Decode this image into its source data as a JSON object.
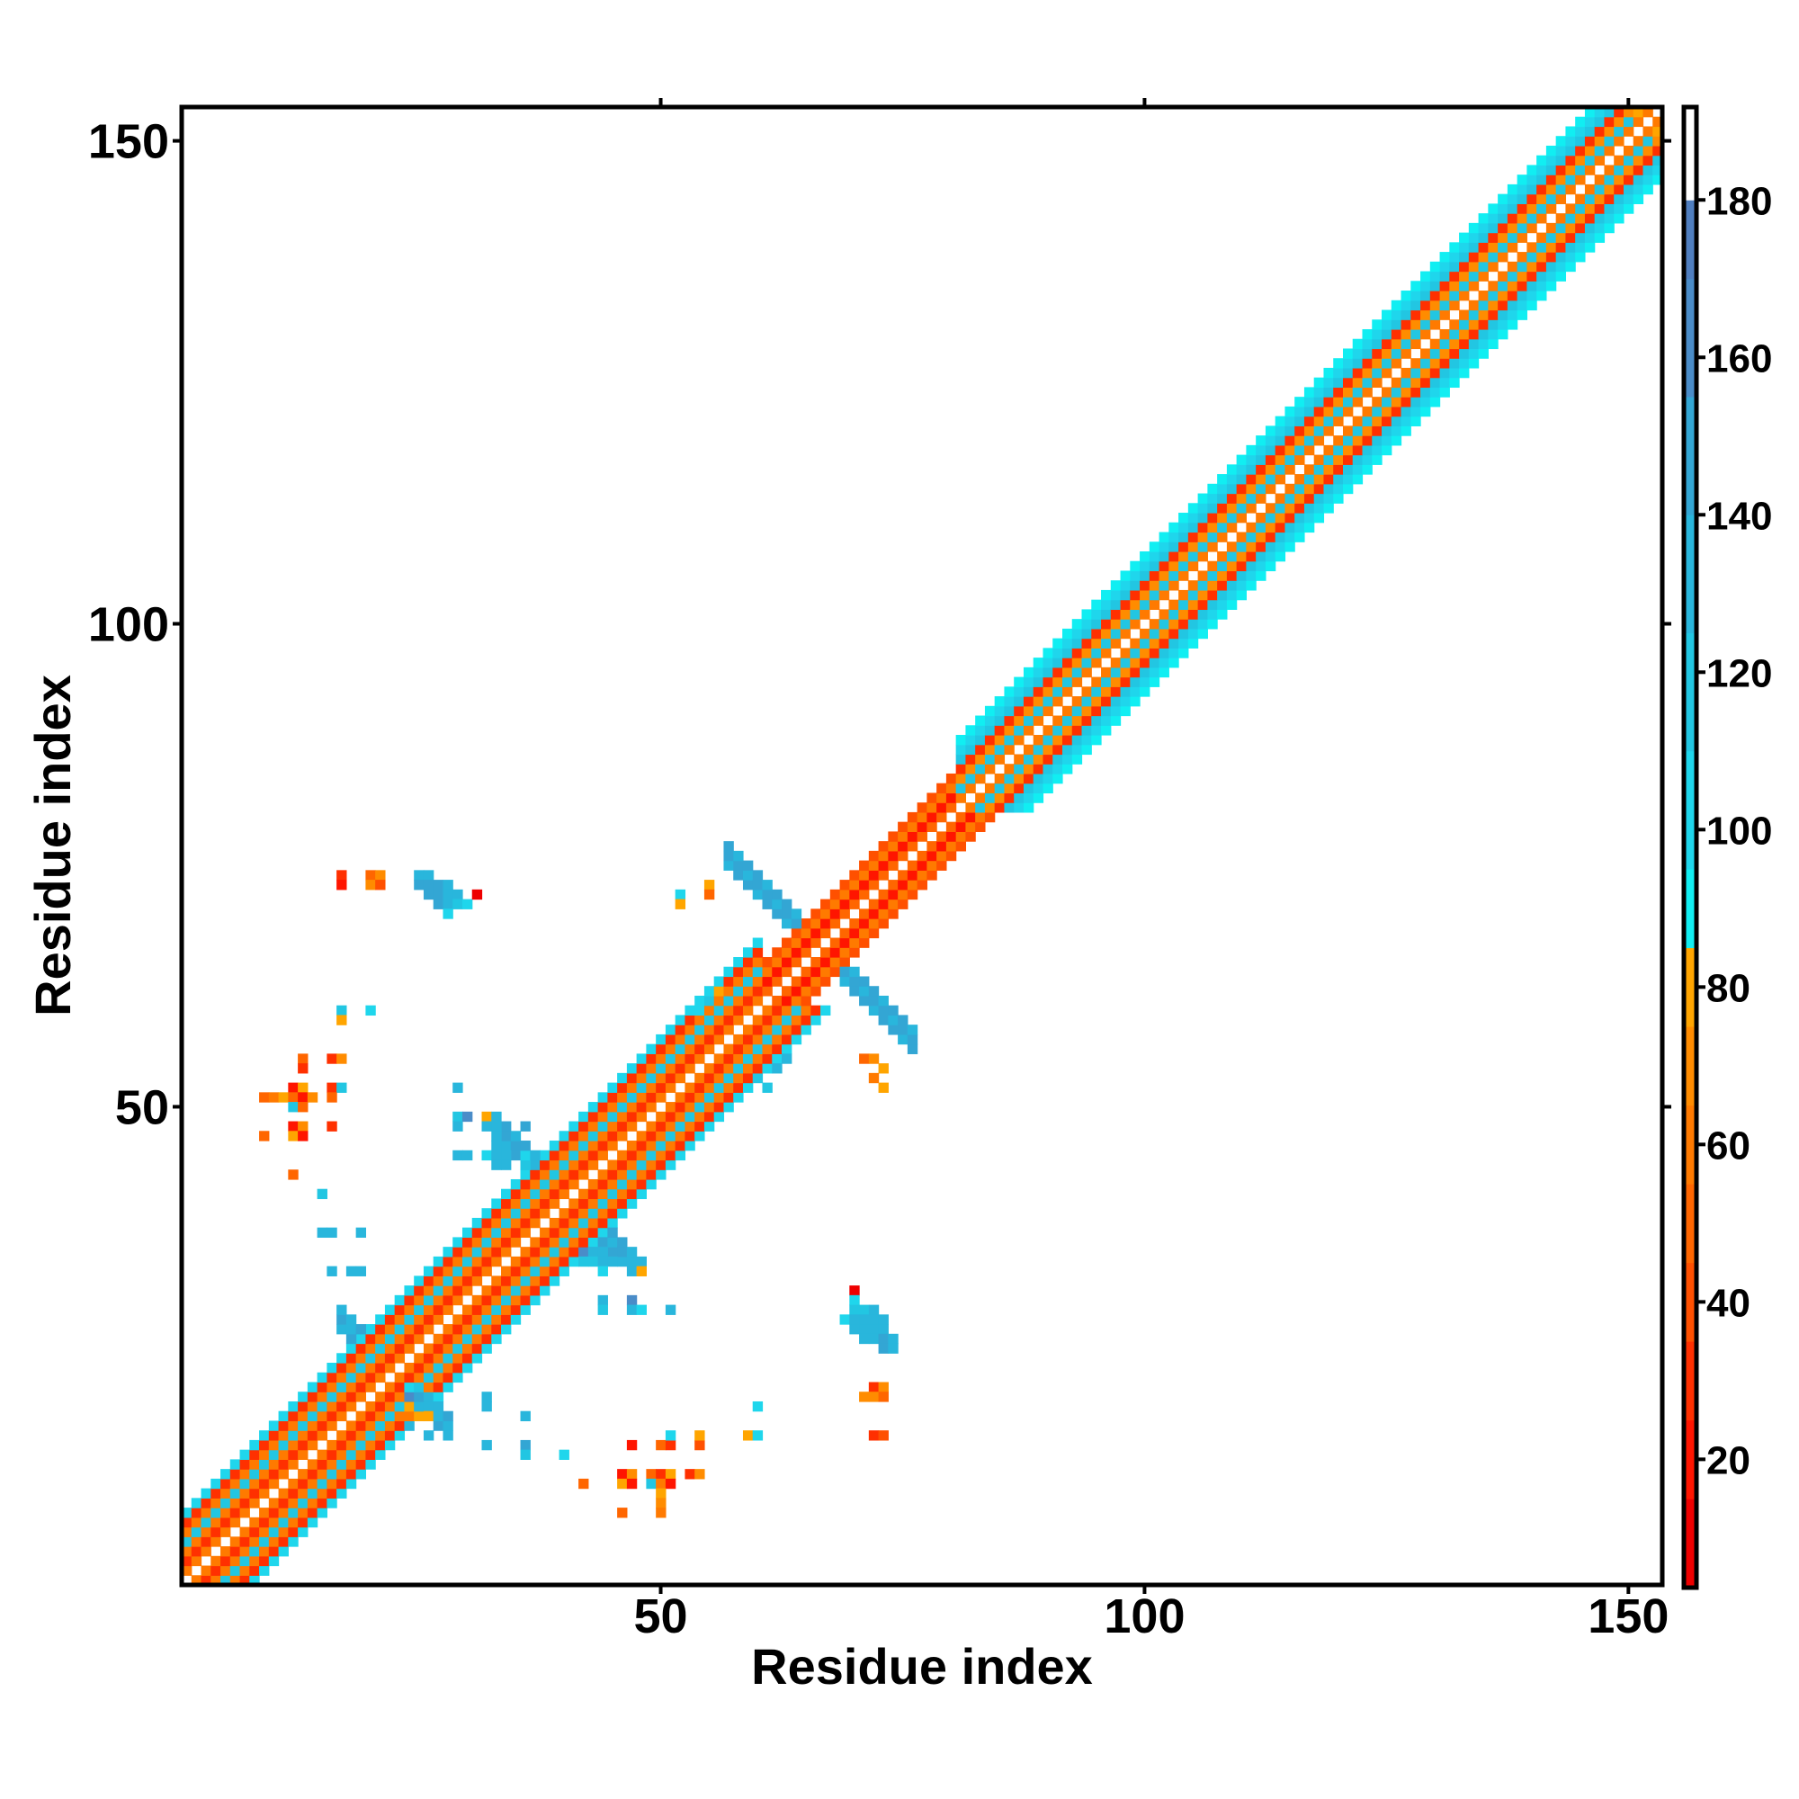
{
  "chart_data": {
    "type": "heatmap",
    "title": "",
    "xlabel": "Residue index",
    "ylabel": "Residue index",
    "xlim": [
      0.5,
      153.5
    ],
    "ylim": [
      0.5,
      153.5
    ],
    "xticks": [
      50,
      100,
      150
    ],
    "yticks": [
      50,
      100,
      150
    ],
    "xtick_labels": [
      "50",
      "100",
      "150"
    ],
    "ytick_labels": [
      "50",
      "100",
      "150"
    ],
    "n_residues": 153,
    "colorbar": {
      "range": [
        3.7,
        191.8
      ],
      "ticks": [
        20,
        40,
        60,
        80,
        100,
        120,
        140,
        160,
        180
      ],
      "tick_labels": [
        "20",
        "40",
        "60",
        "80",
        "100",
        "120",
        "140",
        "160",
        "180"
      ],
      "placement": "right"
    },
    "colormap": [
      [
        15,
        "#ee0000"
      ],
      [
        25,
        "#ff1500"
      ],
      [
        35,
        "#ff3000"
      ],
      [
        45,
        "#ff5000"
      ],
      [
        55,
        "#ff6600"
      ],
      [
        65,
        "#ff7a00"
      ],
      [
        75,
        "#ff8c00"
      ],
      [
        85,
        "#ffa500"
      ],
      [
        95,
        "#11eef2"
      ],
      [
        110,
        "#1fd6ec"
      ],
      [
        125,
        "#22c6e2"
      ],
      [
        140,
        "#29b6dc"
      ],
      [
        155,
        "#33a6d4"
      ],
      [
        170,
        "#4a8cc8"
      ],
      [
        180,
        "#4f7ebf"
      ],
      [
        999,
        "#ffffff"
      ]
    ],
    "diagonal_bands": [
      {
        "from": 1,
        "to": 36,
        "offset_values": [
          55,
          25,
          55,
          115,
          55,
          25,
          100
        ]
      },
      {
        "from": 37,
        "to": 60,
        "offset_values": [
          55,
          25,
          60,
          110,
          55,
          30,
          95
        ]
      },
      {
        "from": 61,
        "to": 80,
        "offset_values": [
          45,
          20,
          60,
          35
        ]
      },
      {
        "from": 81,
        "to": 150,
        "offset_values": [
          60,
          120,
          65,
          25,
          115,
          95,
          90
        ]
      },
      {
        "from": 151,
        "to": 153,
        "offset_values": [
          60,
          80
        ]
      }
    ],
    "antiparallel_contacts": [
      {
        "x_range": [
          17,
          28
        ],
        "sum_range": [
          44,
          46
        ],
        "value": 130
      },
      {
        "x_range": [
          34,
          47
        ],
        "sum_range": [
          80,
          82
        ],
        "value": 135
      },
      {
        "x_range": [
          57,
          76
        ],
        "sum_range": [
          132,
          134
        ],
        "value": 138
      }
    ],
    "contacts": [
      [
        17,
        74,
        25
      ],
      [
        17,
        73,
        20
      ],
      [
        20,
        74,
        45
      ],
      [
        21,
        74,
        70
      ],
      [
        20,
        73,
        65
      ],
      [
        21,
        73,
        35
      ],
      [
        25,
        74,
        125
      ],
      [
        26,
        74,
        125
      ],
      [
        25,
        73,
        140
      ],
      [
        26,
        73,
        140
      ],
      [
        27,
        73,
        140
      ],
      [
        28,
        73,
        130
      ],
      [
        26,
        72,
        140
      ],
      [
        27,
        72,
        140
      ],
      [
        28,
        72,
        125
      ],
      [
        29,
        72,
        125
      ],
      [
        27,
        71,
        140
      ],
      [
        28,
        71,
        125
      ],
      [
        29,
        71,
        110
      ],
      [
        30,
        71,
        95
      ],
      [
        28,
        70,
        95
      ],
      [
        31,
        72,
        10
      ],
      [
        17,
        60,
        110
      ],
      [
        20,
        60,
        95
      ],
      [
        17,
        59,
        75
      ],
      [
        13,
        55,
        50
      ],
      [
        13,
        54,
        30
      ],
      [
        16,
        55,
        30
      ],
      [
        17,
        55,
        70
      ],
      [
        12,
        52,
        20
      ],
      [
        13,
        52,
        80
      ],
      [
        16,
        52,
        30
      ],
      [
        17,
        52,
        110
      ],
      [
        9,
        51,
        50
      ],
      [
        10,
        51,
        55
      ],
      [
        11,
        51,
        80
      ],
      [
        12,
        51,
        50
      ],
      [
        13,
        51,
        20
      ],
      [
        14,
        51,
        65
      ],
      [
        16,
        51,
        50
      ],
      [
        12,
        50,
        115
      ],
      [
        13,
        50,
        50
      ],
      [
        12,
        48,
        15
      ],
      [
        13,
        48,
        70
      ],
      [
        16,
        48,
        25
      ],
      [
        9,
        47,
        50
      ],
      [
        12,
        47,
        80
      ],
      [
        13,
        47,
        15
      ],
      [
        12,
        43,
        50
      ],
      [
        15,
        41,
        110
      ],
      [
        15,
        37,
        125
      ],
      [
        16,
        37,
        130
      ],
      [
        19,
        37,
        130
      ],
      [
        16,
        33,
        130
      ],
      [
        18,
        33,
        125
      ],
      [
        19,
        33,
        125
      ],
      [
        29,
        52,
        125
      ],
      [
        29,
        49,
        110
      ],
      [
        30,
        49,
        165
      ],
      [
        32,
        49,
        80
      ],
      [
        33,
        49,
        125
      ],
      [
        29,
        48,
        130
      ],
      [
        32,
        48,
        125
      ],
      [
        33,
        48,
        125
      ],
      [
        36,
        48,
        140
      ],
      [
        33,
        47,
        125
      ],
      [
        33,
        46,
        125
      ],
      [
        29,
        45,
        125
      ],
      [
        30,
        45,
        130
      ],
      [
        32,
        45,
        95
      ],
      [
        33,
        45,
        125
      ],
      [
        34,
        45,
        130
      ],
      [
        36,
        45,
        95
      ],
      [
        37,
        45,
        125
      ],
      [
        33,
        44,
        125
      ],
      [
        34,
        44,
        130
      ],
      [
        36,
        44,
        110
      ],
      [
        37,
        44,
        125
      ],
      [
        42,
        35,
        165
      ],
      [
        43,
        35,
        130
      ],
      [
        44,
        35,
        130
      ],
      [
        42,
        34,
        120
      ],
      [
        43,
        34,
        120
      ],
      [
        44,
        34,
        125
      ],
      [
        45,
        34,
        125
      ],
      [
        46,
        34,
        125
      ],
      [
        47,
        34,
        125
      ],
      [
        48,
        34,
        125
      ],
      [
        44,
        33,
        95
      ],
      [
        47,
        33,
        135
      ],
      [
        48,
        33,
        80
      ],
      [
        44,
        30,
        125
      ],
      [
        47,
        30,
        165
      ],
      [
        44,
        29,
        115
      ],
      [
        47,
        29,
        135
      ],
      [
        48,
        29,
        95
      ],
      [
        51,
        29,
        125
      ],
      [
        70,
        31,
        10
      ],
      [
        70,
        30,
        95
      ],
      [
        70,
        29,
        120
      ],
      [
        71,
        29,
        120
      ],
      [
        72,
        29,
        125
      ],
      [
        69,
        28,
        95
      ],
      [
        70,
        28,
        125
      ],
      [
        71,
        28,
        125
      ],
      [
        72,
        28,
        130
      ],
      [
        73,
        28,
        130
      ],
      [
        70,
        27,
        130
      ],
      [
        71,
        27,
        130
      ],
      [
        72,
        27,
        135
      ],
      [
        73,
        27,
        135
      ],
      [
        71,
        26,
        135
      ],
      [
        72,
        26,
        135
      ],
      [
        73,
        26,
        140
      ],
      [
        74,
        26,
        125
      ],
      [
        73,
        25,
        140
      ],
      [
        74,
        25,
        125
      ],
      [
        72,
        21,
        25
      ],
      [
        73,
        21,
        70
      ],
      [
        71,
        20,
        70
      ],
      [
        72,
        20,
        70
      ],
      [
        73,
        20,
        45
      ],
      [
        72,
        16,
        30
      ],
      [
        73,
        16,
        40
      ],
      [
        60,
        19,
        95
      ],
      [
        59,
        16,
        80
      ],
      [
        60,
        16,
        95
      ],
      [
        47,
        15,
        15
      ],
      [
        50,
        15,
        50
      ],
      [
        51,
        15,
        25
      ],
      [
        54,
        15,
        35
      ],
      [
        51,
        16,
        95
      ],
      [
        54,
        16,
        80
      ],
      [
        46,
        12,
        15
      ],
      [
        47,
        12,
        70
      ],
      [
        49,
        12,
        50
      ],
      [
        50,
        12,
        25
      ],
      [
        51,
        12,
        80
      ],
      [
        53,
        12,
        30
      ],
      [
        54,
        12,
        65
      ],
      [
        42,
        11,
        50
      ],
      [
        46,
        11,
        80
      ],
      [
        47,
        11,
        15
      ],
      [
        49,
        11,
        110
      ],
      [
        50,
        11,
        55
      ],
      [
        51,
        11,
        20
      ],
      [
        50,
        10,
        80
      ],
      [
        50,
        9,
        65
      ],
      [
        46,
        8,
        50
      ],
      [
        50,
        8,
        55
      ],
      [
        32,
        20,
        125
      ],
      [
        32,
        19,
        130
      ],
      [
        36,
        18,
        130
      ],
      [
        26,
        16,
        130
      ],
      [
        32,
        15,
        125
      ],
      [
        36,
        15,
        145
      ],
      [
        36,
        14,
        110
      ],
      [
        40,
        14,
        100
      ],
      [
        24,
        21,
        95
      ],
      [
        25,
        21,
        110
      ],
      [
        24,
        20,
        165
      ],
      [
        25,
        20,
        150
      ],
      [
        26,
        20,
        125
      ],
      [
        24,
        19,
        80
      ],
      [
        25,
        19,
        130
      ],
      [
        26,
        19,
        130
      ],
      [
        27,
        19,
        130
      ],
      [
        24,
        18,
        55
      ],
      [
        25,
        18,
        80
      ],
      [
        26,
        18,
        80
      ],
      [
        24,
        17,
        125
      ],
      [
        52,
        72,
        95
      ],
      [
        52,
        71,
        80
      ],
      [
        55,
        73,
        80
      ],
      [
        55,
        72,
        45
      ],
      [
        71,
        55,
        45
      ],
      [
        72,
        55,
        70
      ],
      [
        73,
        54,
        80
      ],
      [
        72,
        53,
        55
      ],
      [
        73,
        52,
        80
      ],
      [
        54,
        60,
        95
      ],
      [
        55,
        61,
        110
      ],
      [
        56,
        62,
        80
      ],
      [
        60,
        53,
        120
      ],
      [
        61,
        52,
        110
      ],
      [
        62,
        54,
        125
      ],
      [
        63,
        55,
        130
      ]
    ]
  }
}
